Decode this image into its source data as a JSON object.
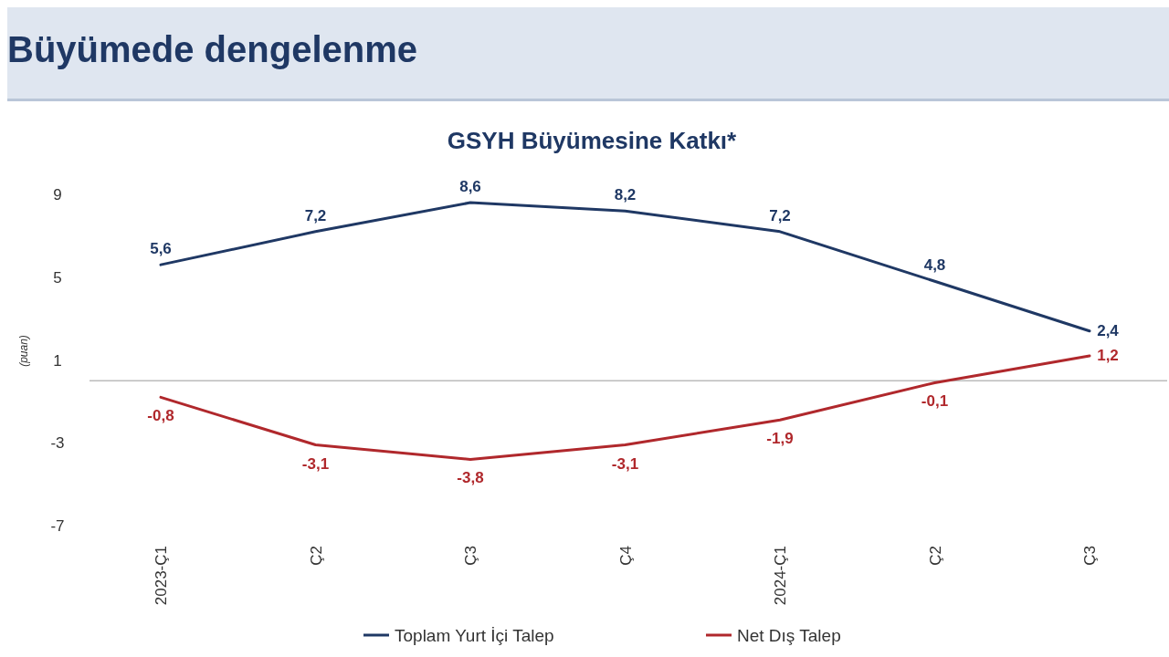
{
  "chart_data": {
    "type": "line",
    "title": "Büyümede dengelenme",
    "subtitle": "GSYH Büyümesine Katkı*",
    "ylabel": "(puan)",
    "categories": [
      "2023-Ç1",
      "Ç2",
      "Ç3",
      "Ç4",
      "2024-Ç1",
      "Ç2",
      "Ç3"
    ],
    "series": [
      {
        "name": "Toplam Yurt İçi Talep",
        "color": "#1f3864",
        "values": [
          5.6,
          7.2,
          8.6,
          8.2,
          7.2,
          4.8,
          2.4
        ],
        "value_labels": [
          "5,6",
          "7,2",
          "8,6",
          "8,2",
          "7,2",
          "4,8",
          "2,4"
        ]
      },
      {
        "name": "Net Dış Talep",
        "color": "#b0282c",
        "values": [
          -0.8,
          -3.1,
          -3.8,
          -3.1,
          -1.9,
          -0.1,
          1.2
        ],
        "value_labels": [
          "-0,8",
          "-3,1",
          "-3,8",
          "-3,1",
          "-1,9",
          "-0,1",
          "1,2"
        ]
      }
    ],
    "ylim": [
      -7,
      9
    ],
    "yticks": [
      9,
      5,
      1,
      -3,
      -7
    ],
    "grid": false,
    "legend": "bottom",
    "marker": "none",
    "line_style": "solid"
  }
}
